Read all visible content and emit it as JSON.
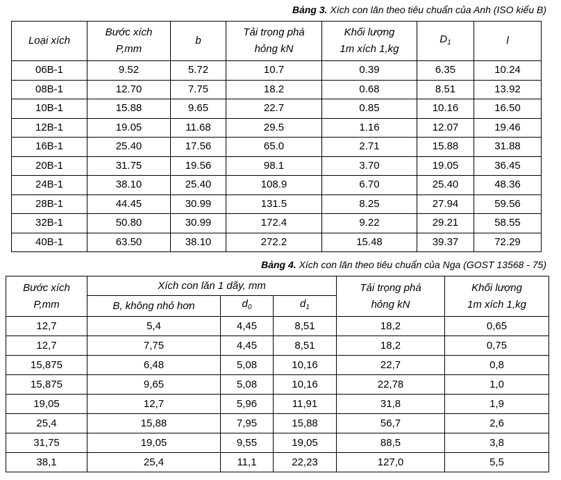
{
  "table3": {
    "caption": {
      "label": "Bảng 3.",
      "text": "Xích con lăn theo tiêu chuẩn của Anh (ISO kiểu B)"
    },
    "header": [
      "Loại xích",
      "Bước xích\nP,mm",
      "b",
      "Tải trọng phá\nhỏng kN",
      "Khối lượng\n1m xích 1,kg",
      {
        "text": "D",
        "sub": "1"
      },
      "l"
    ],
    "rows": [
      [
        "06B-1",
        "9.52",
        "5.72",
        "10.7",
        "0.39",
        "6.35",
        "10.24"
      ],
      [
        "08B-1",
        "12.70",
        "7.75",
        "18.2",
        "0.68",
        "8.51",
        "13.92"
      ],
      [
        "10B-1",
        "15.88",
        "9.65",
        "22.7",
        "0.85",
        "10.16",
        "16.50"
      ],
      [
        "12B-1",
        "19.05",
        "11.68",
        "29.5",
        "1.16",
        "12.07",
        "19.46"
      ],
      [
        "16B-1",
        "25.40",
        "17.56",
        "65.0",
        "2.71",
        "15.88",
        "31.88"
      ],
      [
        "20B-1",
        "31.75",
        "19.56",
        "98.1",
        "3.70",
        "19.05",
        "36.45"
      ],
      [
        "24B-1",
        "38.10",
        "25.40",
        "108.9",
        "6.70",
        "25.40",
        "48.36"
      ],
      [
        "28B-1",
        "44.45",
        "30.99",
        "131.5",
        "8.25",
        "27.94",
        "59.56"
      ],
      [
        "32B-1",
        "50.80",
        "30.99",
        "172.4",
        "9.22",
        "29.21",
        "58.55"
      ],
      [
        "40B-1",
        "63.50",
        "38.10",
        "272.2",
        "15.48",
        "39.37",
        "72.29"
      ]
    ]
  },
  "table4": {
    "caption": {
      "label": "Bảng 4.",
      "text": "Xích con lăn theo tiêu chuẩn của Nga (GOST 13568 - 75)"
    },
    "header_top": [
      "Bước xích\nP,mm",
      "Xích con lăn 1 dãy, mm",
      "Tải trọng phá\nhỏng kN",
      "Khối lượng\n1m xích 1,kg"
    ],
    "header_sub": [
      "B, không nhỏ hơn",
      {
        "text": "d",
        "sub": "0"
      },
      {
        "text": "d",
        "sub": "1"
      }
    ],
    "rows": [
      [
        "12,7",
        "5,4",
        "4,45",
        "8,51",
        "18,2",
        "0,65"
      ],
      [
        "12,7",
        "7,75",
        "4,45",
        "8,51",
        "18,2",
        "0,75"
      ],
      [
        "15,875",
        "6,48",
        "5,08",
        "10,16",
        "22,7",
        "0,8"
      ],
      [
        "15,875",
        "9,65",
        "5,08",
        "10,16",
        "22,78",
        "1,0"
      ],
      [
        "19,05",
        "12,7",
        "5,96",
        "11,91",
        "31,8",
        "1,9"
      ],
      [
        "25,4",
        "15,88",
        "7,95",
        "15,88",
        "56,7",
        "2,6"
      ],
      [
        "31,75",
        "19,05",
        "9,55",
        "19,05",
        "88,5",
        "3,8"
      ],
      [
        "38,1",
        "25,4",
        "11,1",
        "22,23",
        "127,0",
        "5,5"
      ]
    ]
  }
}
